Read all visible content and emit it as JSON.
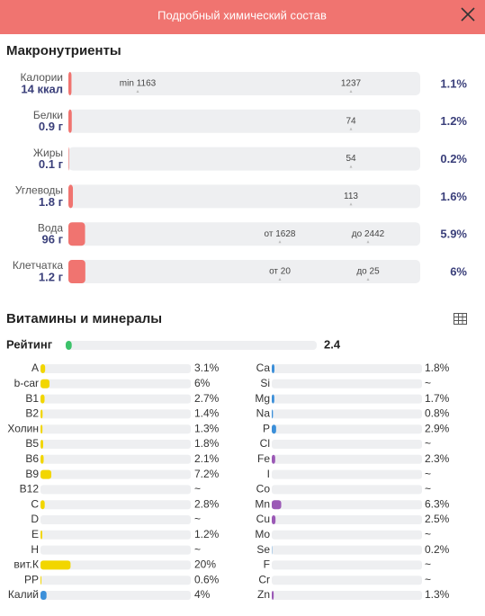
{
  "header": {
    "title": "Подробный химический состав"
  },
  "macros": {
    "title": "Макронутриенты",
    "color": "#f07470",
    "rows": [
      {
        "name": "Калории",
        "amount": "14 ккал",
        "markers": [
          "min 1163",
          "1237"
        ],
        "value": 1.1,
        "label": "1.1%"
      },
      {
        "name": "Белки",
        "amount": "0.9 г",
        "markers": [
          "74"
        ],
        "value": 1.2,
        "label": "1.2%"
      },
      {
        "name": "Жиры",
        "amount": "0.1 г",
        "markers": [
          "54"
        ],
        "value": 0.2,
        "label": "0.2%"
      },
      {
        "name": "Углеводы",
        "amount": "1.8 г",
        "markers": [
          "113"
        ],
        "value": 1.6,
        "label": "1.6%"
      },
      {
        "name": "Вода",
        "amount": "96 г",
        "markers": [
          "от 1628",
          "до 2442"
        ],
        "value": 5.9,
        "label": "5.9%"
      },
      {
        "name": "Клетчатка",
        "amount": "1.2 г",
        "markers": [
          "от 20",
          "до 25"
        ],
        "value": 6,
        "label": "6%"
      }
    ]
  },
  "vitamins": {
    "title": "Витамины и минералы",
    "rating": {
      "label": "Рейтинг",
      "value": 2.4,
      "color": "#3cc26a"
    },
    "columns": [
      [
        {
          "name": "A",
          "value": 3.1,
          "label": "3.1%",
          "color": "#f2d600"
        },
        {
          "name": "b-car",
          "value": 6,
          "label": "6%",
          "color": "#f2d600"
        },
        {
          "name": "B1",
          "value": 2.7,
          "label": "2.7%",
          "color": "#f2d600"
        },
        {
          "name": "B2",
          "value": 1.4,
          "label": "1.4%",
          "color": "#f2d600"
        },
        {
          "name": "Холин",
          "value": 1.3,
          "label": "1.3%",
          "color": "#f2d600"
        },
        {
          "name": "B5",
          "value": 1.8,
          "label": "1.8%",
          "color": "#f2d600"
        },
        {
          "name": "B6",
          "value": 2.1,
          "label": "2.1%",
          "color": "#f2d600"
        },
        {
          "name": "B9",
          "value": 7.2,
          "label": "7.2%",
          "color": "#f2d600"
        },
        {
          "name": "B12",
          "value": null,
          "label": "~"
        },
        {
          "name": "C",
          "value": 2.8,
          "label": "2.8%",
          "color": "#f2d600"
        },
        {
          "name": "D",
          "value": null,
          "label": "~"
        },
        {
          "name": "E",
          "value": 1.2,
          "label": "1.2%",
          "color": "#f2d600"
        },
        {
          "name": "H",
          "value": null,
          "label": "~"
        },
        {
          "name": "вит.К",
          "value": 20,
          "label": "20%",
          "color": "#f2d600"
        },
        {
          "name": "PP",
          "value": 0.6,
          "label": "0.6%",
          "color": "#f2d600"
        },
        {
          "name": "Калий",
          "value": 4,
          "label": "4%",
          "color": "#3b8fd9"
        }
      ],
      [
        {
          "name": "Ca",
          "value": 1.8,
          "label": "1.8%",
          "color": "#3b8fd9"
        },
        {
          "name": "Si",
          "value": null,
          "label": "~"
        },
        {
          "name": "Mg",
          "value": 1.7,
          "label": "1.7%",
          "color": "#3b8fd9"
        },
        {
          "name": "Na",
          "value": 0.8,
          "label": "0.8%",
          "color": "#3b8fd9"
        },
        {
          "name": "P",
          "value": 2.9,
          "label": "2.9%",
          "color": "#3b8fd9"
        },
        {
          "name": "Cl",
          "value": null,
          "label": "~"
        },
        {
          "name": "Fe",
          "value": 2.3,
          "label": "2.3%",
          "color": "#9b59b6"
        },
        {
          "name": "I",
          "value": null,
          "label": "~"
        },
        {
          "name": "Co",
          "value": null,
          "label": "~"
        },
        {
          "name": "Mn",
          "value": 6.3,
          "label": "6.3%",
          "color": "#9b59b6"
        },
        {
          "name": "Cu",
          "value": 2.5,
          "label": "2.5%",
          "color": "#9b59b6"
        },
        {
          "name": "Mo",
          "value": null,
          "label": "~"
        },
        {
          "name": "Se",
          "value": 0.2,
          "label": "0.2%",
          "color": "#3b8fd9"
        },
        {
          "name": "F",
          "value": null,
          "label": "~"
        },
        {
          "name": "Cr",
          "value": null,
          "label": "~"
        },
        {
          "name": "Zn",
          "value": 1.3,
          "label": "1.3%",
          "color": "#9b59b6"
        }
      ]
    ]
  }
}
